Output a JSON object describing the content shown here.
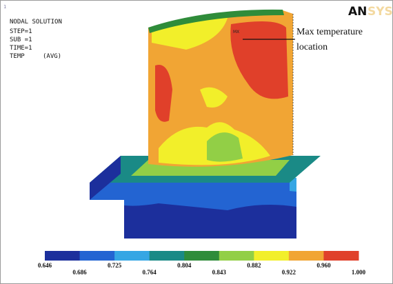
{
  "header": {
    "index": "1",
    "lines": [
      "NODAL SOLUTION",
      "STEP=1",
      "SUB =1",
      "TIME=1"
    ],
    "result": "TEMP",
    "option": "(AVG)",
    "logo": {
      "bold": "AN",
      "faded": "SYS"
    }
  },
  "annotation": {
    "text": [
      "Max temperature",
      "location"
    ],
    "marker": "MX"
  },
  "legend": {
    "colors": [
      "#1c2f9c",
      "#2364d2",
      "#35a6e4",
      "#1a8a86",
      "#2f8c3a",
      "#92cf46",
      "#f2ef2a",
      "#f1a534",
      "#e0402a"
    ],
    "labels": [
      "0.646",
      "0.686",
      "0.725",
      "0.764",
      "0.804",
      "0.843",
      "0.882",
      "0.922",
      "0.960",
      "1.000"
    ]
  }
}
